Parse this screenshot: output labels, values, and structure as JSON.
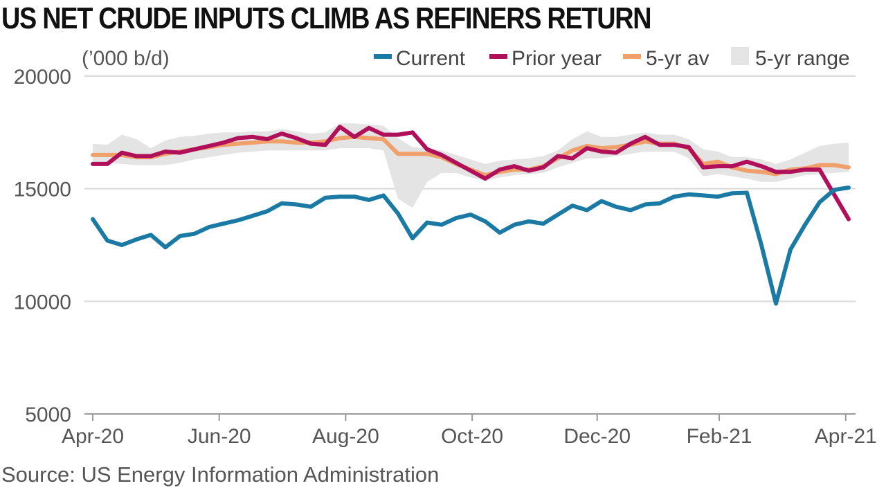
{
  "chart_data": {
    "type": "line",
    "title": "US NET CRUDE INPUTS CLIMB AS REFINERS RETURN",
    "unit_label": "(’000 b/d)",
    "source": "Source: US Energy Information Administration",
    "ylim": [
      5000,
      20000
    ],
    "y_ticks": [
      "20000",
      "15000",
      "10000",
      "5000"
    ],
    "y_tick_values": [
      20000,
      15000,
      10000,
      5000
    ],
    "x_ticks": [
      "Apr-20",
      "Jun-20",
      "Aug-20",
      "Oct-20",
      "Dec-20",
      "Feb-21",
      "Apr-21"
    ],
    "x_tick_weeks": [
      0,
      8.7,
      17.4,
      26.1,
      34.7,
      43.1,
      51.8
    ],
    "weeks": 53,
    "grid": "horizontal",
    "legend_position": "top-right",
    "colors": {
      "current": "#1b7aa3",
      "prior_year": "#b0105a",
      "five_yr_av": "#f0a06a",
      "five_yr_range": "#e4e4e4"
    },
    "series": [
      {
        "name": "Current",
        "key": "current",
        "values": [
          13650,
          12700,
          12500,
          12750,
          12950,
          12400,
          12900,
          13000,
          13300,
          13450,
          13600,
          13800,
          14000,
          14350,
          14300,
          14200,
          14600,
          14650,
          14650,
          14500,
          14700,
          13900,
          12800,
          13500,
          13400,
          13700,
          13850,
          13550,
          13050,
          13400,
          13550,
          13450,
          13850,
          14250,
          14050,
          14450,
          14200,
          14050,
          14300,
          14350,
          14650,
          14750,
          14700,
          14650,
          14800,
          14820,
          12500,
          9900,
          12300,
          13400,
          14400,
          14950,
          15050
        ]
      },
      {
        "name": "Prior year",
        "key": "prior_year",
        "values": [
          16100,
          16100,
          16600,
          16450,
          16450,
          16650,
          16600,
          16750,
          16900,
          17050,
          17250,
          17300,
          17200,
          17450,
          17250,
          17000,
          16950,
          17750,
          17300,
          17700,
          17400,
          17400,
          17500,
          16750,
          16500,
          16150,
          15800,
          15450,
          15850,
          16000,
          15800,
          15950,
          16450,
          16350,
          16800,
          16650,
          16600,
          17000,
          17300,
          16950,
          16950,
          16850,
          15950,
          16000,
          16000,
          16200,
          16000,
          15750,
          15750,
          15850,
          15850,
          14750,
          13650
        ]
      },
      {
        "name": "5-yr av",
        "key": "five_yr_av",
        "values": [
          16500,
          16500,
          16500,
          16400,
          16400,
          16550,
          16650,
          16750,
          16850,
          16950,
          17000,
          17050,
          17100,
          17100,
          17050,
          17050,
          17100,
          17250,
          17300,
          17250,
          17200,
          16550,
          16550,
          16550,
          16400,
          16100,
          15850,
          15600,
          15750,
          15850,
          15850,
          16000,
          16350,
          16700,
          16900,
          16800,
          16850,
          16950,
          17100,
          17000,
          17000,
          16800,
          16100,
          16200,
          15950,
          15800,
          15750,
          15650,
          15850,
          15900,
          16050,
          16050,
          15950
        ]
      },
      {
        "name": "5-yr range",
        "key": "five_yr_range",
        "low": [
          16100,
          16150,
          16100,
          16050,
          16050,
          16050,
          16150,
          16300,
          16400,
          16500,
          16600,
          16650,
          16700,
          16700,
          16700,
          16700,
          16700,
          16800,
          16800,
          16800,
          16700,
          14550,
          14150,
          15300,
          15700,
          15700,
          15500,
          15350,
          15500,
          15600,
          15650,
          15700,
          15950,
          16150,
          16350,
          16350,
          16450,
          16550,
          16650,
          16650,
          16650,
          16350,
          15550,
          15650,
          15550,
          15450,
          15300,
          15300,
          15450,
          15600,
          15650,
          15700,
          15750
        ],
        "high": [
          17000,
          16950,
          17400,
          17200,
          16800,
          17150,
          17300,
          17350,
          17450,
          17500,
          17500,
          17550,
          17550,
          17650,
          17550,
          17450,
          17500,
          17900,
          17900,
          17850,
          17800,
          17250,
          16850,
          16800,
          16700,
          16500,
          16300,
          16100,
          16250,
          16300,
          16350,
          16450,
          16700,
          17200,
          17550,
          17300,
          17300,
          17400,
          17500,
          17400,
          17400,
          17200,
          16750,
          16650,
          16400,
          16400,
          16300,
          16100,
          16300,
          16600,
          16900,
          17000,
          17050
        ]
      }
    ]
  }
}
